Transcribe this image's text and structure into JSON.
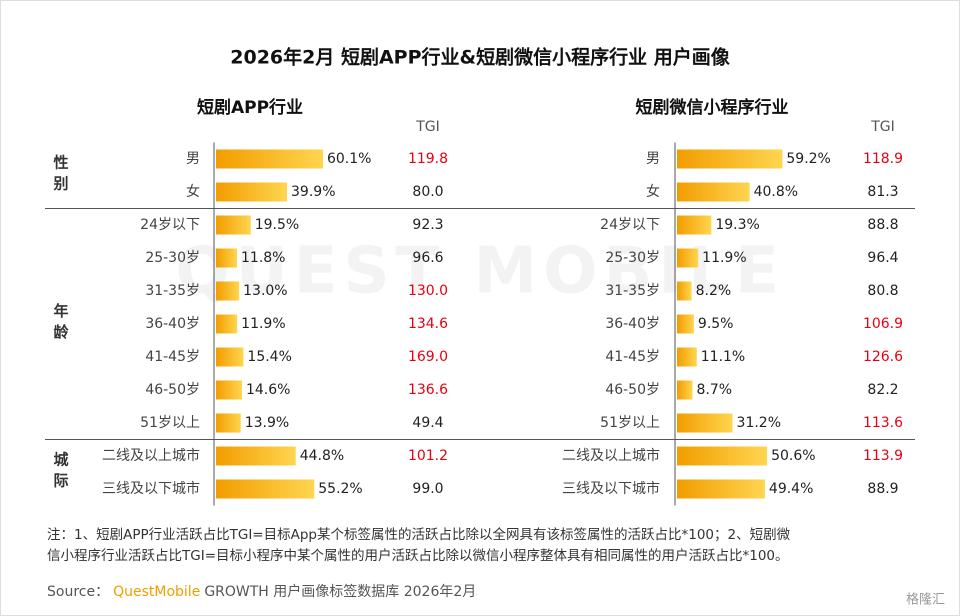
{
  "title": "2026年2月 短剧APP行业&短剧微信小程序行业 用户画像",
  "row_groups": [
    "性别",
    "年龄",
    "城际"
  ],
  "watermark": "QUEST MOBILE",
  "note": [
    "注：1、短剧APP行业活跃占比TGI=目标App某个标签属性的活跃占比除以全网具有该标签属性的活跃占比*100；2、短剧微",
    "信小程序行业活跃占比TGI=目标小程序中某个属性的用户活跃占比除以微信小程序整体具有相同属性的用户活跃占比*100。"
  ],
  "source": {
    "label": "Source：",
    "brand": "QuestMobile",
    "text": "GROWTH 用户画像标签数据库 2026年2月"
  },
  "logo": "格隆汇",
  "chart_data": [
    {
      "type": "bar",
      "orientation": "horizontal",
      "title": "短剧APP行业",
      "tgi_title": "TGI",
      "color": "#f7a400",
      "groups": [
        {
          "categories": [
            "男",
            "女"
          ],
          "values": [
            60.1,
            39.9
          ],
          "value_labels": [
            "60.1%",
            "39.9%"
          ],
          "tgi": [
            "119.8",
            "80.0"
          ],
          "tgi_colors": [
            "#e60012",
            "#222222"
          ]
        },
        {
          "categories": [
            "24岁以下",
            "25-30岁",
            "31-35岁",
            "36-40岁",
            "41-45岁",
            "46-50岁",
            "51岁以上"
          ],
          "values": [
            19.5,
            11.8,
            13,
            11.9,
            15.4,
            14.6,
            13.9
          ],
          "value_labels": [
            "19.5%",
            "11.8%",
            "13.0%",
            "11.9%",
            "15.4%",
            "14.6%",
            "13.9%"
          ],
          "tgi": [
            "92.3",
            "96.6",
            "130.0",
            "134.6",
            "169.0",
            "136.6",
            "49.4"
          ],
          "tgi_colors": [
            "#222222",
            "#222222",
            "#e60012",
            "#e60012",
            "#e60012",
            "#e60012",
            "#222222"
          ]
        },
        {
          "categories": [
            "二线及以上城市",
            "三线及以下城市"
          ],
          "values": [
            44.8,
            55.2
          ],
          "value_labels": [
            "44.8%",
            "55.2%"
          ],
          "tgi": [
            "101.2",
            "99.0"
          ],
          "tgi_colors": [
            "#e60012",
            "#222222"
          ]
        }
      ]
    },
    {
      "type": "bar",
      "orientation": "horizontal",
      "title": "短剧微信小程序行业",
      "tgi_title": "TGI",
      "color": "#f7a400",
      "groups": [
        {
          "categories": [
            "男",
            "女"
          ],
          "values": [
            59.2,
            40.8
          ],
          "value_labels": [
            "59.2%",
            "40.8%"
          ],
          "tgi": [
            "118.9",
            "81.3"
          ],
          "tgi_colors": [
            "#e60012",
            "#222222"
          ]
        },
        {
          "categories": [
            "24岁以下",
            "25-30岁",
            "31-35岁",
            "36-40岁",
            "41-45岁",
            "46-50岁",
            "51岁以上"
          ],
          "values": [
            19.3,
            11.9,
            8.2,
            9.5,
            11.1,
            8.7,
            31.2
          ],
          "value_labels": [
            "19.3%",
            "11.9%",
            "8.2%",
            "9.5%",
            "11.1%",
            "8.7%",
            "31.2%"
          ],
          "tgi": [
            "88.8",
            "96.4",
            "80.8",
            "106.9",
            "126.6",
            "82.2",
            "113.6"
          ],
          "tgi_colors": [
            "#222222",
            "#222222",
            "#222222",
            "#e60012",
            "#e60012",
            "#222222",
            "#e60012"
          ]
        },
        {
          "categories": [
            "二线及以上城市",
            "三线及以下城市"
          ],
          "values": [
            50.6,
            49.4
          ],
          "value_labels": [
            "50.6%",
            "49.4%"
          ],
          "tgi": [
            "113.9",
            "88.9"
          ],
          "tgi_colors": [
            "#e60012",
            "#222222"
          ]
        }
      ]
    }
  ]
}
